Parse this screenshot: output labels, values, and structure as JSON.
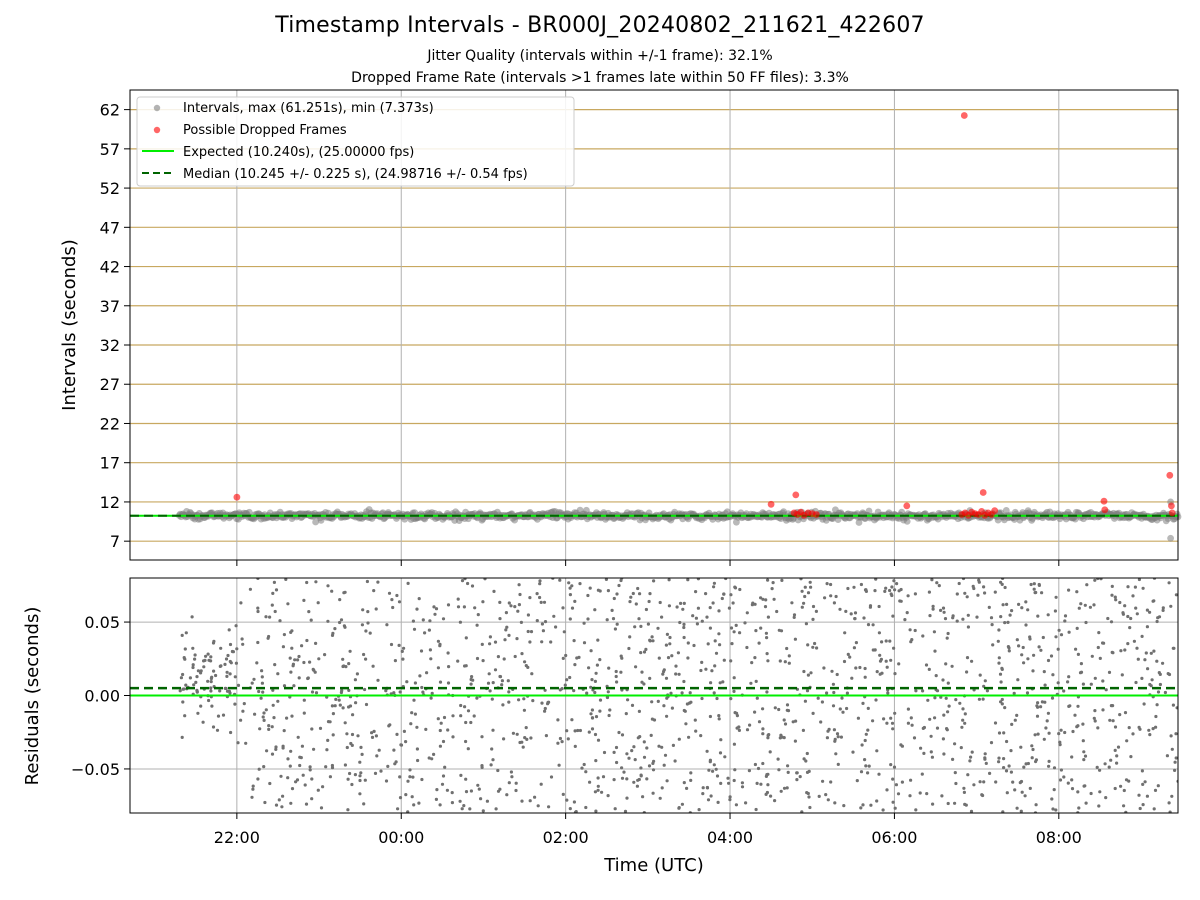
{
  "header": {
    "title": "Timestamp Intervals - BR000J_20240802_211621_422607",
    "jitter_line": "Jitter Quality (intervals within +/-1 frame): 32.1%",
    "dropped_line": "Dropped Frame Rate (intervals >1 frames late within 50 FF files): 3.3%"
  },
  "chart_data": [
    {
      "type": "scatter",
      "ylabel": "Intervals (seconds)",
      "xlim_hours": [
        -3.3,
        9.45
      ],
      "ylim": [
        4.6,
        64.5
      ],
      "yticks": [
        7,
        12,
        17,
        22,
        27,
        32,
        37,
        42,
        47,
        52,
        57,
        62
      ],
      "grid": "horizontal tan lines at y ticks, vertical gray lines at x ticks",
      "legend_position": "top-left",
      "legend": {
        "intervals": "Intervals, max (61.251s), min (7.373s)",
        "dropped": "Possible Dropped Frames",
        "expected": "Expected (10.240s), (25.00000 fps)",
        "median": "Median (10.245 +/- 0.225 s), (24.98716 +/- 0.54 fps)"
      },
      "expected_interval": 10.24,
      "median_interval": 10.245,
      "interval_stats": {
        "max": 61.251,
        "min": 7.373,
        "start_hour": -2.7,
        "end_hour": 9.45
      },
      "dropped_frames": [
        {
          "x": -2.0,
          "y": 12.6
        },
        {
          "x": 4.5,
          "y": 11.7
        },
        {
          "x": 4.8,
          "y": 12.9
        },
        {
          "x": 4.78,
          "y": 10.6
        },
        {
          "x": 4.82,
          "y": 10.4
        },
        {
          "x": 4.86,
          "y": 10.7
        },
        {
          "x": 4.9,
          "y": 10.3
        },
        {
          "x": 4.95,
          "y": 10.6
        },
        {
          "x": 5.0,
          "y": 10.5
        },
        {
          "x": 5.05,
          "y": 10.4
        },
        {
          "x": 6.15,
          "y": 11.5
        },
        {
          "x": 6.85,
          "y": 61.25
        },
        {
          "x": 6.82,
          "y": 10.4
        },
        {
          "x": 6.86,
          "y": 10.6
        },
        {
          "x": 6.9,
          "y": 10.3
        },
        {
          "x": 6.94,
          "y": 10.7
        },
        {
          "x": 6.98,
          "y": 10.5
        },
        {
          "x": 7.02,
          "y": 10.4
        },
        {
          "x": 7.06,
          "y": 10.8
        },
        {
          "x": 7.08,
          "y": 13.2
        },
        {
          "x": 7.1,
          "y": 10.3
        },
        {
          "x": 7.14,
          "y": 10.6
        },
        {
          "x": 7.18,
          "y": 10.4
        },
        {
          "x": 7.22,
          "y": 10.9
        },
        {
          "x": 8.55,
          "y": 12.1
        },
        {
          "x": 8.56,
          "y": 11.0
        },
        {
          "x": 9.35,
          "y": 15.4
        },
        {
          "x": 9.37,
          "y": 11.5
        },
        {
          "x": 9.38,
          "y": 10.6
        }
      ]
    },
    {
      "type": "scatter",
      "ylabel": "Residuals (seconds)",
      "xlabel": "Time (UTC)",
      "xlim_hours": [
        -3.3,
        9.45
      ],
      "ylim": [
        -0.08,
        0.08
      ],
      "yticks": [
        0.05,
        0.0,
        -0.05
      ],
      "ytick_labels": [
        "0.05",
        "0.00",
        "−0.05"
      ],
      "xticks_hours": [
        -2,
        0,
        2,
        4,
        6,
        8
      ],
      "xtick_labels": [
        "22:00",
        "00:00",
        "02:00",
        "04:00",
        "06:00",
        "08:00"
      ],
      "grid": "on",
      "expected_residual": 0.0,
      "median_residual": 0.005,
      "residual_stats": {
        "start_hour": -2.7,
        "end_hour": 9.45,
        "spread": 0.08
      }
    }
  ],
  "colors": {
    "interval_points": "#808080",
    "dropped_points": "#ff0000",
    "expected_line": "#00ee00",
    "median_line": "#006400",
    "hgrid_top": "#c8a860",
    "grid": "#b0b0b0",
    "residual_points": "#707070"
  }
}
